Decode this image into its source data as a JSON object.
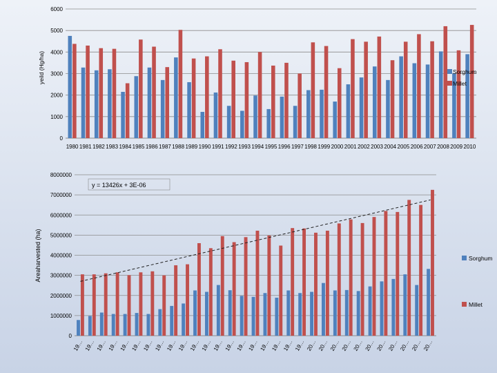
{
  "colors": {
    "sorghum": "#4f81bd",
    "millet": "#c0504d",
    "gridline": "#8c8c8c",
    "trendline": "#1f1f1f"
  },
  "chart_data": [
    {
      "type": "bar",
      "title": "",
      "xlabel": "",
      "ylabel": "yeild (Hg/ha)",
      "ylim": [
        0,
        6000
      ],
      "yticks": [
        "0",
        "1000",
        "2000",
        "3000",
        "4000",
        "5000",
        "6000"
      ],
      "grid": true,
      "legend_position": "right",
      "categories": [
        "1980",
        "1981",
        "1982",
        "1983",
        "1984",
        "1985",
        "1986",
        "1987",
        "1988",
        "1989",
        "1990",
        "1991",
        "1992",
        "1993",
        "1994",
        "1995",
        "1996",
        "1997",
        "1998",
        "1999",
        "2000",
        "2001",
        "2002",
        "2003",
        "2004",
        "2005",
        "2006",
        "2007",
        "2008",
        "2009",
        "2010"
      ],
      "series": [
        {
          "name": "Sorghum",
          "values": [
            4750,
            3280,
            3150,
            3200,
            2150,
            2880,
            3280,
            2700,
            3750,
            2600,
            1220,
            2120,
            1500,
            1270,
            1980,
            1350,
            1930,
            1500,
            2230,
            2250,
            1700,
            2500,
            2820,
            3330,
            2700,
            3800,
            3480,
            3420,
            4030,
            3000,
            3900
          ]
        },
        {
          "name": "Millet",
          "values": [
            4380,
            4300,
            4180,
            4150,
            2550,
            4580,
            4250,
            3300,
            5030,
            3700,
            3800,
            4130,
            3600,
            3530,
            4000,
            3370,
            3500,
            3000,
            4450,
            4280,
            3250,
            4600,
            4480,
            4720,
            3620,
            4480,
            4830,
            4500,
            5200,
            4080,
            5260
          ]
        }
      ]
    },
    {
      "type": "bar",
      "title": "",
      "xlabel": "",
      "ylabel": "Areaharvested (ha)",
      "ylim": [
        0,
        8000000
      ],
      "yticks": [
        "0",
        "1000000",
        "2000000",
        "3000000",
        "4000000",
        "5000000",
        "6000000",
        "7000000",
        "8000000"
      ],
      "grid": true,
      "legend_position": "right",
      "categories": [
        "19…",
        "19…",
        "19…",
        "19…",
        "19…",
        "19…",
        "19…",
        "19…",
        "19…",
        "19…",
        "19…",
        "19…",
        "19…",
        "19…",
        "19…",
        "19…",
        "19…",
        "19…",
        "19…",
        "19…",
        "20…",
        "20…",
        "20…",
        "20…",
        "20…",
        "20…",
        "20…",
        "20…",
        "20…",
        "20…",
        "20…"
      ],
      "series": [
        {
          "name": "Sorghum",
          "values": [
            780000,
            980000,
            1150000,
            1080000,
            1080000,
            1130000,
            1080000,
            1320000,
            1480000,
            1600000,
            2250000,
            2180000,
            2520000,
            2260000,
            1980000,
            1930000,
            2120000,
            1890000,
            2250000,
            2120000,
            2180000,
            2620000,
            2250000,
            2270000,
            2220000,
            2450000,
            2700000,
            2820000,
            3050000,
            2520000,
            3320000
          ]
        },
        {
          "name": "Millet",
          "values": [
            3050000,
            3050000,
            3100000,
            3150000,
            3010000,
            3150000,
            3200000,
            3000000,
            3500000,
            3550000,
            4600000,
            4350000,
            4950000,
            4650000,
            4900000,
            5220000,
            4980000,
            4480000,
            5350000,
            5330000,
            5120000,
            5220000,
            5580000,
            5780000,
            5600000,
            5900000,
            6200000,
            6150000,
            6750000,
            6500000,
            7250000
          ]
        }
      ],
      "trendline": {
        "label": "y = 13426x + 3E-06",
        "start": 2700000,
        "end": 6750000
      }
    }
  ]
}
